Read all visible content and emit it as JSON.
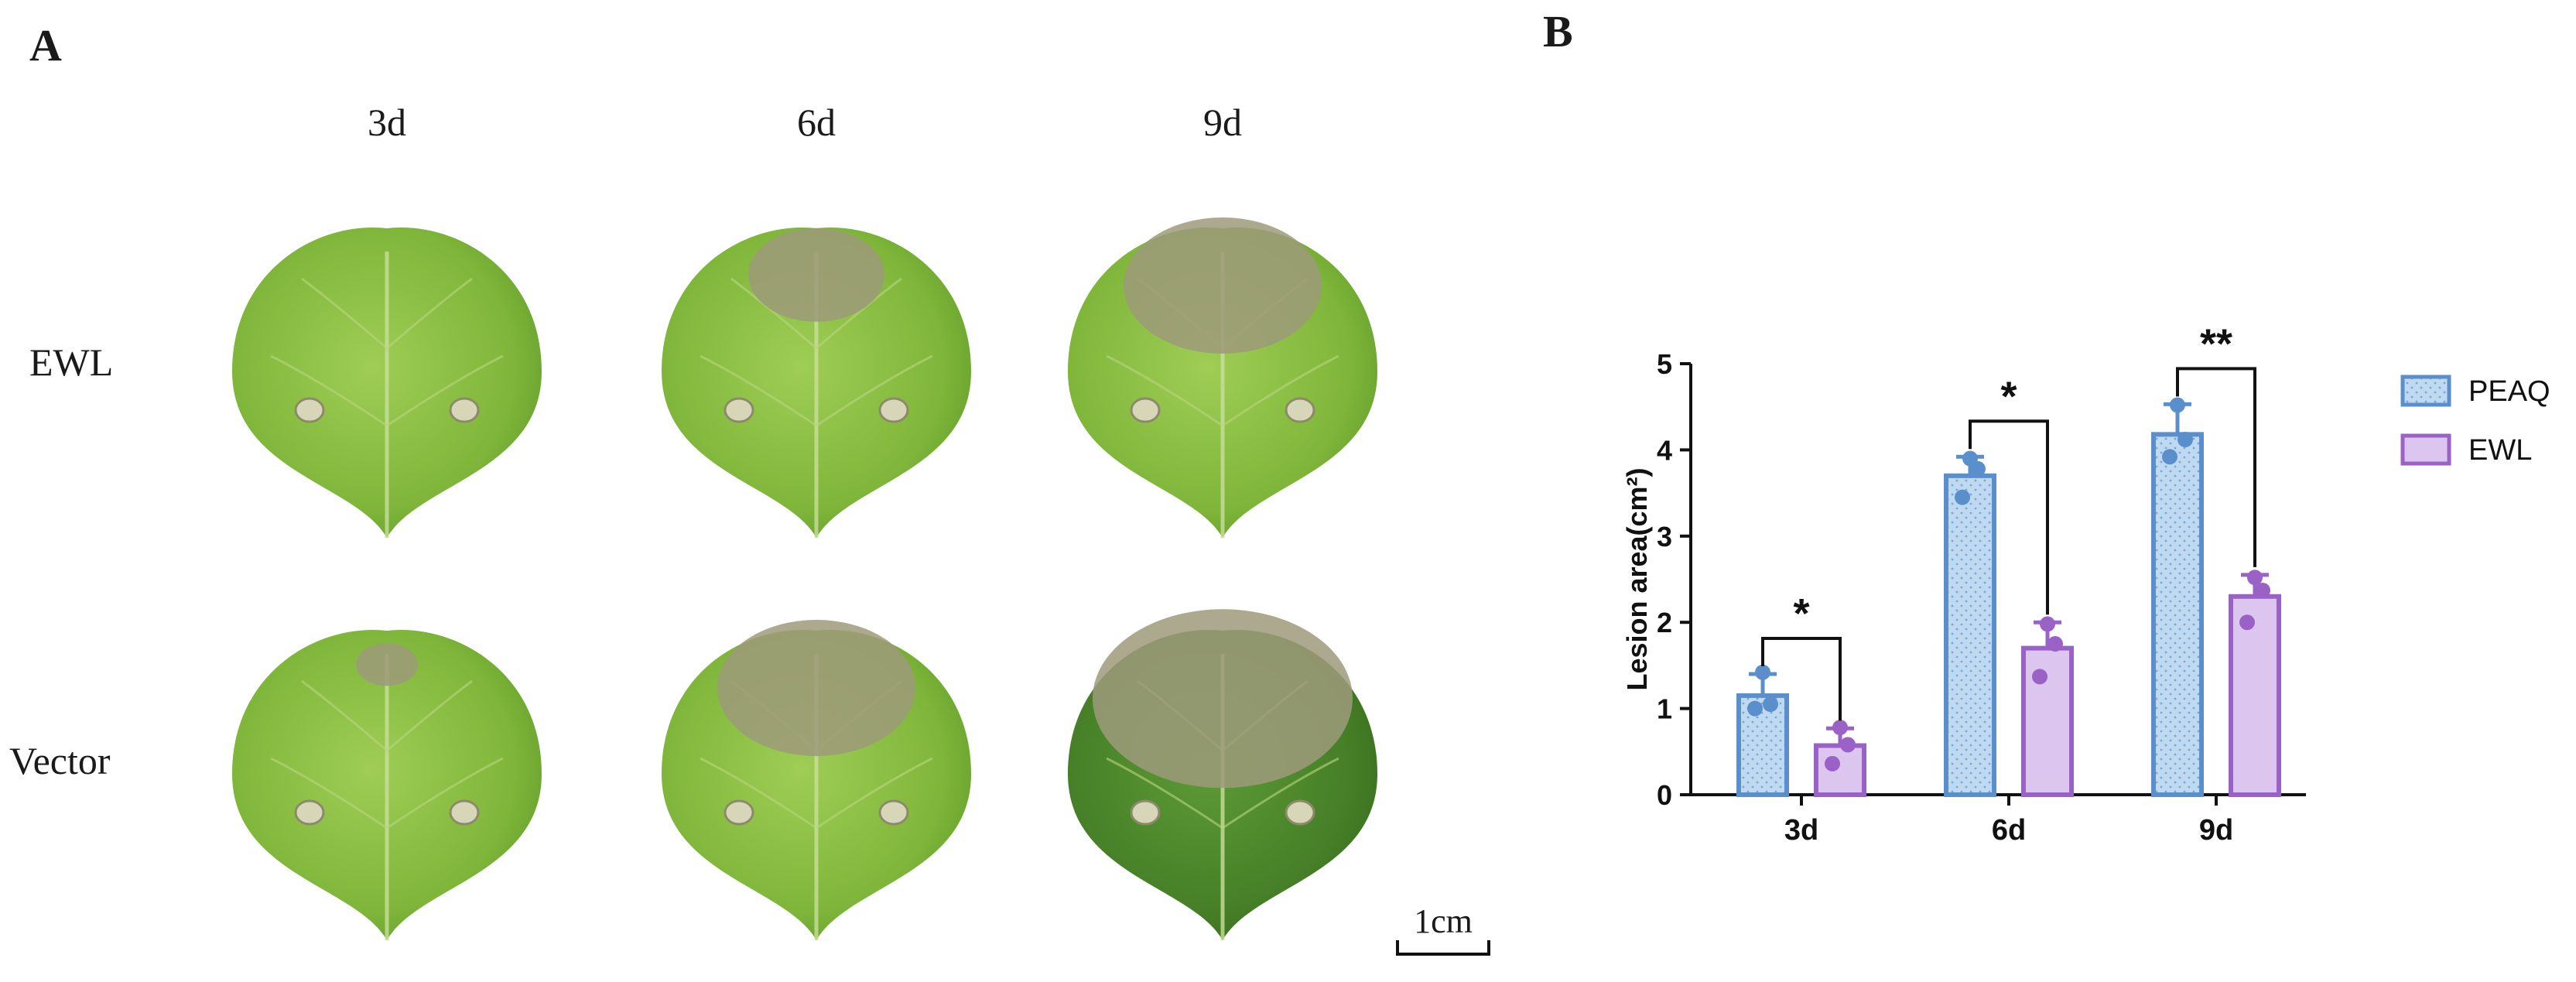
{
  "panel_a": {
    "label": "A",
    "columns": [
      "3d",
      "6d",
      "9d"
    ],
    "rows": [
      "EWL",
      "Vector"
    ],
    "scale_bar_label": "1cm"
  },
  "panel_b": {
    "label": "B"
  },
  "colors": {
    "peaq_fill": "#bfd9f0",
    "peaq_edge": "#5b8fcc",
    "ewl_fill": "#dcc5ef",
    "ewl_edge": "#9a62c6",
    "leaf_light": "#8fc24a",
    "leaf_dark": "#4f8a2a",
    "lesion": "#9e9a7a"
  },
  "chart_data": {
    "type": "bar",
    "categories": [
      "3d",
      "6d",
      "9d"
    ],
    "ylabel": "Lesion area(cm²)",
    "ylim": [
      0,
      5
    ],
    "yticks": [
      0,
      1,
      2,
      3,
      4,
      5
    ],
    "legend_placement": "right",
    "series": [
      {
        "name": "PEAQ",
        "values": [
          1.15,
          3.7,
          4.18
        ],
        "errors": [
          0.25,
          0.22,
          0.35
        ],
        "points": [
          [
            1.42,
            1.05,
            1.0
          ],
          [
            3.9,
            3.78,
            3.45
          ],
          [
            4.52,
            4.12,
            3.92
          ]
        ]
      },
      {
        "name": "EWL",
        "values": [
          0.57,
          1.7,
          2.3
        ],
        "errors": [
          0.2,
          0.3,
          0.25
        ],
        "points": [
          [
            0.78,
            0.58,
            0.36
          ],
          [
            1.98,
            1.75,
            1.37
          ],
          [
            2.52,
            2.37,
            2.0
          ]
        ]
      }
    ],
    "significance": [
      "*",
      "*",
      "**"
    ]
  }
}
